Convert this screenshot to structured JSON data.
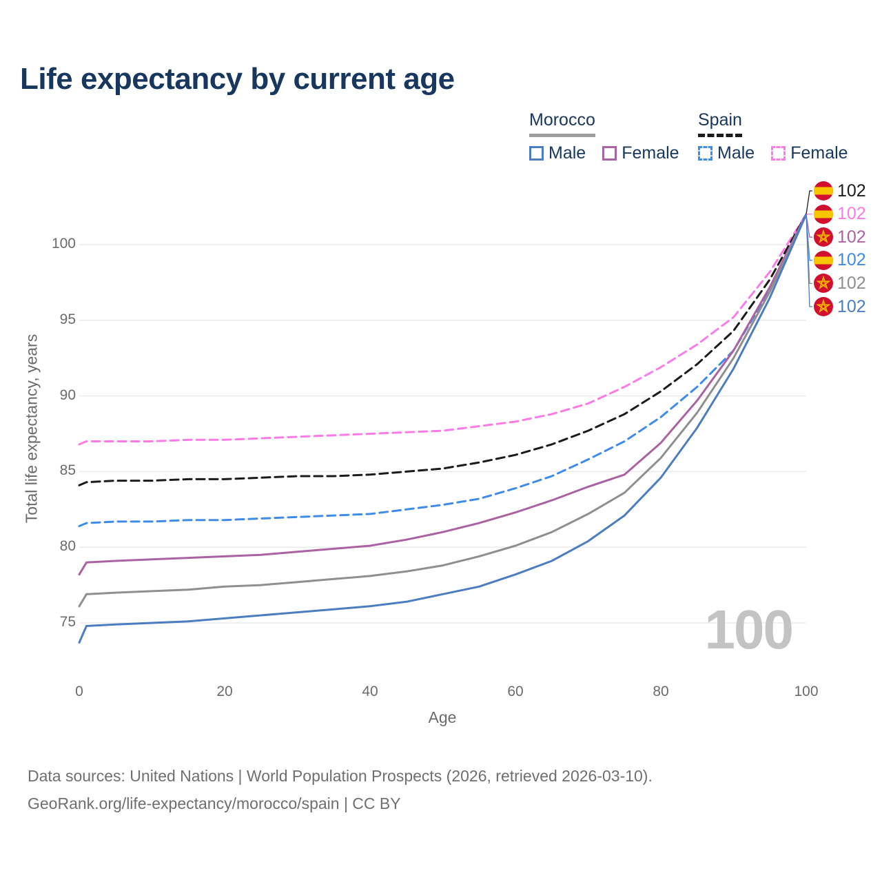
{
  "page": {
    "title": "Life expectancy by current age"
  },
  "legend": {
    "groups": [
      {
        "name": "Morocco",
        "underline_style": "solid",
        "underline_color": "#9e9e9e",
        "items": [
          {
            "label": "Male",
            "color": "#4b7dc0",
            "style": "solid"
          },
          {
            "label": "Female",
            "color": "#ab62a3",
            "style": "solid"
          }
        ]
      },
      {
        "name": "Spain",
        "underline_style": "dashed",
        "underline_color": "#1b1b1b",
        "items": [
          {
            "label": "Male",
            "color": "#3e8bea",
            "style": "dashed"
          },
          {
            "label": "Female",
            "color": "#fb7ce6",
            "style": "dashed"
          }
        ]
      }
    ]
  },
  "chart_data": {
    "type": "line",
    "title": "Life expectancy by current age",
    "xlabel": "Age",
    "ylabel": "Total life expectancy, years",
    "xlim": [
      0,
      100
    ],
    "ylim": [
      73,
      103
    ],
    "x_ticks": [
      0,
      20,
      40,
      60,
      80,
      100
    ],
    "y_ticks": [
      75,
      80,
      85,
      90,
      95,
      100
    ],
    "grid": "horizontal",
    "legend_position": "top-right",
    "age_watermark": "100",
    "x": [
      0,
      1,
      5,
      10,
      15,
      20,
      25,
      30,
      35,
      40,
      45,
      50,
      55,
      60,
      65,
      70,
      75,
      80,
      85,
      90,
      95,
      100
    ],
    "series": [
      {
        "name": "Spain Female",
        "country": "Spain",
        "sex": "Female",
        "color": "#fb7ce6",
        "style": "dashed",
        "values": [
          86.8,
          87.0,
          87.0,
          87.0,
          87.1,
          87.1,
          87.2,
          87.3,
          87.4,
          87.5,
          87.6,
          87.7,
          88.0,
          88.3,
          88.8,
          89.5,
          90.6,
          91.9,
          93.4,
          95.2,
          98.2,
          102
        ]
      },
      {
        "name": "Spain Total",
        "country": "Spain",
        "sex": "Both",
        "color": "#1b1b1b",
        "style": "dashed",
        "values": [
          84.1,
          84.3,
          84.4,
          84.4,
          84.5,
          84.5,
          84.6,
          84.7,
          84.7,
          84.8,
          85.0,
          85.2,
          85.6,
          86.1,
          86.8,
          87.7,
          88.8,
          90.3,
          92.1,
          94.3,
          97.7,
          102
        ]
      },
      {
        "name": "Spain Male",
        "country": "Spain",
        "sex": "Male",
        "color": "#3e8bea",
        "style": "dashed",
        "values": [
          81.4,
          81.6,
          81.7,
          81.7,
          81.8,
          81.8,
          81.9,
          82.0,
          82.1,
          82.2,
          82.5,
          82.8,
          83.2,
          83.9,
          84.7,
          85.8,
          87.0,
          88.6,
          90.6,
          93.0,
          97.0,
          102
        ]
      },
      {
        "name": "Morocco Female",
        "country": "Morocco",
        "sex": "Female",
        "color": "#ab62a3",
        "style": "solid",
        "values": [
          78.2,
          79.0,
          79.1,
          79.2,
          79.3,
          79.4,
          79.5,
          79.7,
          79.9,
          80.1,
          80.5,
          81.0,
          81.6,
          82.3,
          83.1,
          84.0,
          84.8,
          86.9,
          89.7,
          93.0,
          97.2,
          102
        ]
      },
      {
        "name": "Morocco Total",
        "country": "Morocco",
        "sex": "Both",
        "color": "#8f8f8f",
        "style": "solid",
        "values": [
          76.1,
          76.9,
          77.0,
          77.1,
          77.2,
          77.4,
          77.5,
          77.7,
          77.9,
          78.1,
          78.4,
          78.8,
          79.4,
          80.1,
          81.0,
          82.2,
          83.6,
          85.9,
          88.9,
          92.5,
          96.9,
          102
        ]
      },
      {
        "name": "Morocco Male",
        "country": "Morocco",
        "sex": "Male",
        "color": "#4b7dc0",
        "style": "solid",
        "values": [
          73.7,
          74.8,
          74.9,
          75.0,
          75.1,
          75.3,
          75.5,
          75.7,
          75.9,
          76.1,
          76.4,
          76.9,
          77.4,
          78.2,
          79.1,
          80.4,
          82.1,
          84.6,
          87.9,
          91.8,
          96.5,
          102
        ]
      }
    ],
    "end_labels": [
      {
        "series": "Spain Total",
        "flag": "spain",
        "value": "102",
        "color": "#1b1b1b"
      },
      {
        "series": "Spain Female",
        "flag": "spain",
        "value": "102",
        "color": "#fb7ce6"
      },
      {
        "series": "Morocco Female",
        "flag": "morocco",
        "value": "102",
        "color": "#ab62a3"
      },
      {
        "series": "Spain Male",
        "flag": "spain",
        "value": "102",
        "color": "#3e8bea"
      },
      {
        "series": "Morocco Total",
        "flag": "morocco",
        "value": "102",
        "color": "#8f8f8f"
      },
      {
        "series": "Morocco Male",
        "flag": "morocco",
        "value": "102",
        "color": "#4b7dc0"
      }
    ],
    "flag_colors": {
      "red": "#d11030",
      "yellow": "#f7c600",
      "star_gold": "#f2b300"
    }
  },
  "footer": {
    "line1": "Data sources: United Nations | World Population Prospects (2026, retrieved 2026-03-10).",
    "line2": "GeoRank.org/life-expectancy/morocco/spain | CC BY"
  }
}
